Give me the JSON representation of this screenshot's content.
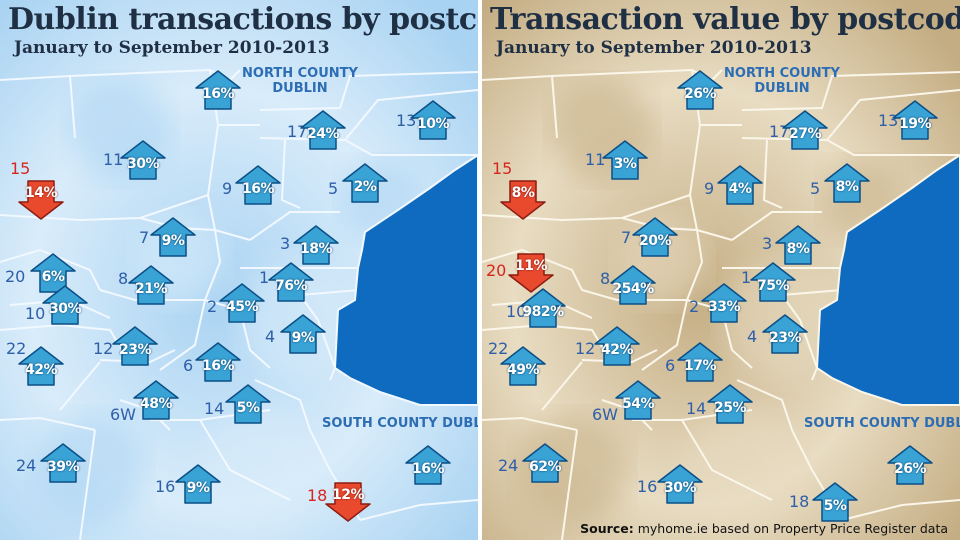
{
  "panels": [
    {
      "title": "Dublin transactions by postcode",
      "subtitle": "January to September 2010-2013",
      "colors": {
        "land_a": "#d9ecfa",
        "land_b": "#a9d3f2",
        "border": "#f2f8ff",
        "sea": "#0e6bbf"
      },
      "regions": [
        "NORTH COUNTY\nDUBLIN",
        "SOUTH COUNTY DUBLIN"
      ],
      "districts": [
        {
          "label": "15",
          "value": "14%",
          "direction": "down"
        },
        {
          "label": "",
          "value": "16%",
          "direction": "up"
        },
        {
          "label": "17",
          "value": "24%",
          "direction": "up"
        },
        {
          "label": "13",
          "value": "10%",
          "direction": "up"
        },
        {
          "label": "11",
          "value": "30%",
          "direction": "up"
        },
        {
          "label": "9",
          "value": "16%",
          "direction": "up"
        },
        {
          "label": "5",
          "value": "2%",
          "direction": "up"
        },
        {
          "label": "7",
          "value": "9%",
          "direction": "up"
        },
        {
          "label": "3",
          "value": "18%",
          "direction": "up"
        },
        {
          "label": "20",
          "value": "6%",
          "direction": "up"
        },
        {
          "label": "8",
          "value": "21%",
          "direction": "up"
        },
        {
          "label": "1",
          "value": "76%",
          "direction": "up"
        },
        {
          "label": "10",
          "value": "30%",
          "direction": "up"
        },
        {
          "label": "2",
          "value": "45%",
          "direction": "up"
        },
        {
          "label": "4",
          "value": "9%",
          "direction": "up"
        },
        {
          "label": "22",
          "value": "42%",
          "direction": "up"
        },
        {
          "label": "12",
          "value": "23%",
          "direction": "up"
        },
        {
          "label": "6",
          "value": "16%",
          "direction": "up"
        },
        {
          "label": "6W",
          "value": "48%",
          "direction": "up"
        },
        {
          "label": "14",
          "value": "5%",
          "direction": "up"
        },
        {
          "label": "24",
          "value": "39%",
          "direction": "up"
        },
        {
          "label": "",
          "value": "16%",
          "direction": "up"
        },
        {
          "label": "16",
          "value": "9%",
          "direction": "up"
        },
        {
          "label": "18",
          "value": "12%",
          "direction": "down"
        }
      ]
    },
    {
      "title": "Transaction value by postcode",
      "subtitle": "January to September 2010-2013",
      "colors": {
        "land_a": "#e8dcc2",
        "land_b": "#c4ad83",
        "border": "#fbf6ea",
        "sea": "#0e6bbf"
      },
      "regions": [
        "NORTH COUNTY\nDUBLIN",
        "SOUTH COUNTY DUBLIN"
      ],
      "districts": [
        {
          "label": "15",
          "value": "8%",
          "direction": "down"
        },
        {
          "label": "",
          "value": "26%",
          "direction": "up"
        },
        {
          "label": "17",
          "value": "27%",
          "direction": "up"
        },
        {
          "label": "13",
          "value": "19%",
          "direction": "up"
        },
        {
          "label": "11",
          "value": "3%",
          "direction": "up"
        },
        {
          "label": "9",
          "value": "4%",
          "direction": "up"
        },
        {
          "label": "5",
          "value": "8%",
          "direction": "up"
        },
        {
          "label": "7",
          "value": "20%",
          "direction": "up"
        },
        {
          "label": "3",
          "value": "8%",
          "direction": "up"
        },
        {
          "label": "20",
          "value": "11%",
          "direction": "down"
        },
        {
          "label": "8",
          "value": "254%",
          "direction": "up"
        },
        {
          "label": "1",
          "value": "75%",
          "direction": "up"
        },
        {
          "label": "10",
          "value": "982%",
          "direction": "up"
        },
        {
          "label": "2",
          "value": "33%",
          "direction": "up"
        },
        {
          "label": "4",
          "value": "23%",
          "direction": "up"
        },
        {
          "label": "22",
          "value": "49%",
          "direction": "up"
        },
        {
          "label": "12",
          "value": "42%",
          "direction": "up"
        },
        {
          "label": "6",
          "value": "17%",
          "direction": "up"
        },
        {
          "label": "6W",
          "value": "54%",
          "direction": "up"
        },
        {
          "label": "14",
          "value": "25%",
          "direction": "up"
        },
        {
          "label": "24",
          "value": "62%",
          "direction": "up"
        },
        {
          "label": "",
          "value": "26%",
          "direction": "up"
        },
        {
          "label": "16",
          "value": "30%",
          "direction": "up"
        },
        {
          "label": "18",
          "value": "5%",
          "direction": "up"
        }
      ]
    }
  ],
  "source": {
    "bold": "Source:",
    "text": "myhome.ie based on Property Price Register data"
  }
}
